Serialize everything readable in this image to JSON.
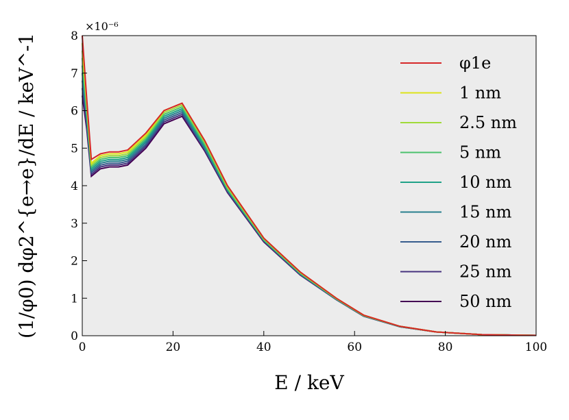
{
  "chart_data": {
    "type": "line",
    "xlabel": "E / keV",
    "ylabel": "(1/φ0) dφ2^{e→e}/dE / keV^-1",
    "y_scale_label": "×10⁻⁶",
    "xlim": [
      0,
      100
    ],
    "ylim": [
      0,
      8
    ],
    "x_ticks": [
      0,
      20,
      40,
      60,
      80,
      100
    ],
    "y_ticks": [
      0,
      1,
      2,
      3,
      4,
      5,
      6,
      7,
      8
    ],
    "x_tick_labels": [
      "0",
      "20",
      "40",
      "60",
      "80",
      "100"
    ],
    "y_tick_labels": [
      "0",
      "1",
      "2",
      "3",
      "4",
      "5",
      "6",
      "7",
      "8"
    ],
    "legend_position": "top-right",
    "series": [
      {
        "name": "φ1e",
        "color": "#d62728",
        "values": [
          8.0,
          6.3,
          4.7,
          4.85,
          4.9,
          4.9,
          4.95,
          5.4,
          6.0,
          6.2,
          5.2,
          4.0,
          2.6,
          1.7,
          1.0,
          0.55,
          0.25,
          0.1,
          0.03,
          0.01
        ]
      },
      {
        "name": "1 nm",
        "color": "#dde31a",
        "values": [
          7.8,
          6.2,
          4.6,
          4.8,
          4.85,
          4.85,
          4.9,
          5.35,
          6.0,
          6.2,
          5.2,
          4.0,
          2.6,
          1.7,
          1.0,
          0.55,
          0.25,
          0.1,
          0.03,
          0.01
        ]
      },
      {
        "name": "2.5 nm",
        "color": "#a0da39",
        "values": [
          7.6,
          6.1,
          4.55,
          4.75,
          4.8,
          4.8,
          4.85,
          5.3,
          5.95,
          6.15,
          5.15,
          3.95,
          2.58,
          1.68,
          0.99,
          0.54,
          0.25,
          0.1,
          0.03,
          0.01
        ]
      },
      {
        "name": "5 nm",
        "color": "#4ac16d",
        "values": [
          7.4,
          6.0,
          4.5,
          4.7,
          4.75,
          4.75,
          4.8,
          5.25,
          5.9,
          6.1,
          5.1,
          3.92,
          2.56,
          1.67,
          0.98,
          0.54,
          0.25,
          0.1,
          0.03,
          0.01
        ]
      },
      {
        "name": "10 nm",
        "color": "#1fa187",
        "values": [
          7.2,
          5.9,
          4.45,
          4.65,
          4.7,
          4.7,
          4.75,
          5.2,
          5.85,
          6.05,
          5.05,
          3.9,
          2.55,
          1.66,
          0.98,
          0.53,
          0.25,
          0.1,
          0.03,
          0.01
        ]
      },
      {
        "name": "15 nm",
        "color": "#277f8e",
        "values": [
          7.0,
          5.8,
          4.4,
          4.6,
          4.65,
          4.65,
          4.7,
          5.15,
          5.8,
          6.0,
          5.0,
          3.88,
          2.54,
          1.65,
          0.97,
          0.53,
          0.24,
          0.1,
          0.03,
          0.01
        ]
      },
      {
        "name": "20 nm",
        "color": "#365c8d",
        "values": [
          6.8,
          5.7,
          4.35,
          4.55,
          4.6,
          4.6,
          4.65,
          5.1,
          5.75,
          5.95,
          4.98,
          3.86,
          2.53,
          1.64,
          0.97,
          0.53,
          0.24,
          0.1,
          0.03,
          0.01
        ]
      },
      {
        "name": "25 nm",
        "color": "#46327e",
        "values": [
          6.6,
          5.6,
          4.3,
          4.5,
          4.55,
          4.55,
          4.6,
          5.05,
          5.7,
          5.9,
          4.95,
          3.84,
          2.52,
          1.63,
          0.96,
          0.52,
          0.24,
          0.1,
          0.03,
          0.01
        ]
      },
      {
        "name": "50 nm",
        "color": "#440154",
        "values": [
          6.4,
          5.5,
          4.25,
          4.45,
          4.5,
          4.5,
          4.55,
          5.0,
          5.65,
          5.85,
          4.92,
          3.82,
          2.5,
          1.62,
          0.96,
          0.52,
          0.24,
          0.1,
          0.03,
          0.01
        ]
      }
    ],
    "x": [
      0,
      1,
      2,
      4,
      6,
      8,
      10,
      14,
      18,
      22,
      27,
      32,
      40,
      48,
      56,
      62,
      70,
      78,
      88,
      100
    ]
  }
}
